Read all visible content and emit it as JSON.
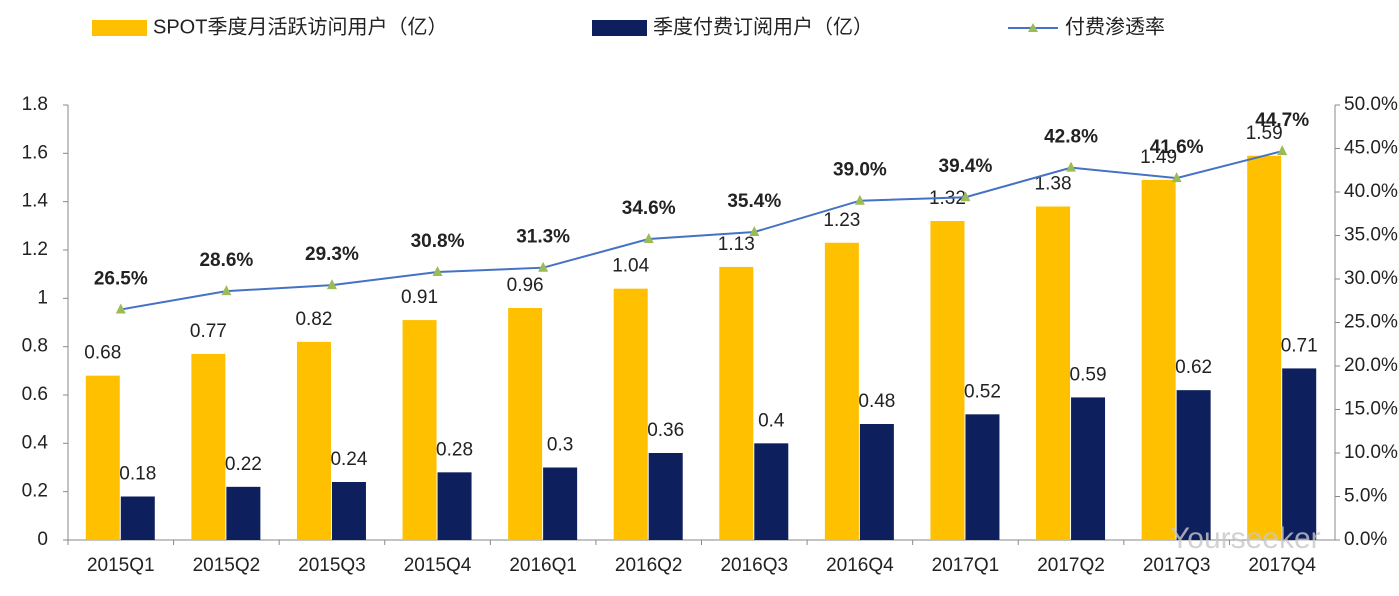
{
  "chart_data": {
    "type": "bar-line",
    "categories": [
      "2015Q1",
      "2015Q2",
      "2015Q3",
      "2015Q4",
      "2016Q1",
      "2016Q2",
      "2016Q3",
      "2016Q4",
      "2017Q1",
      "2017Q2",
      "2017Q3",
      "2017Q4"
    ],
    "series": [
      {
        "name": "SPOT季度月活跃访问用户（亿）",
        "color": "#FFC000",
        "type": "bar",
        "values": [
          0.68,
          0.77,
          0.82,
          0.91,
          0.96,
          1.04,
          1.13,
          1.23,
          1.32,
          1.38,
          1.49,
          1.59
        ]
      },
      {
        "name": "季度付费订阅用户（亿）",
        "color": "#0D1F5C",
        "type": "bar",
        "values": [
          0.18,
          0.22,
          0.24,
          0.28,
          0.3,
          0.36,
          0.4,
          0.48,
          0.52,
          0.59,
          0.62,
          0.71
        ]
      },
      {
        "name": "付费渗透率",
        "color": "#4472C4",
        "marker_color": "#9BBB59",
        "type": "line",
        "axis": "y2",
        "values": [
          26.5,
          28.6,
          29.3,
          30.8,
          31.3,
          34.6,
          35.4,
          39.0,
          39.4,
          42.8,
          41.6,
          44.7
        ],
        "value_labels": [
          "26.5%",
          "28.6%",
          "29.3%",
          "30.8%",
          "31.3%",
          "34.6%",
          "35.4%",
          "39.0%",
          "39.4%",
          "42.8%",
          "41.6%",
          "44.7%"
        ]
      }
    ],
    "ylim": [
      0,
      1.8
    ],
    "yticks": [
      0,
      0.2,
      0.4,
      0.6,
      0.8,
      1,
      1.2,
      1.4,
      1.6,
      1.8
    ],
    "y2lim": [
      0,
      50
    ],
    "y2ticks": [
      {
        "value": 0,
        "label": "0.0%"
      },
      {
        "value": 5,
        "label": "5.0%"
      },
      {
        "value": 10,
        "label": "10.0%"
      },
      {
        "value": 15,
        "label": "15.0%"
      },
      {
        "value": 20,
        "label": "20.0%"
      },
      {
        "value": 25,
        "label": "25.0%"
      },
      {
        "value": 30,
        "label": "30.0%"
      },
      {
        "value": 35,
        "label": "35.0%"
      },
      {
        "value": 40,
        "label": "40.0%"
      },
      {
        "value": 45,
        "label": "45.0%"
      },
      {
        "value": 50,
        "label": "50.0%"
      }
    ],
    "watermark": "Yourseeker"
  }
}
